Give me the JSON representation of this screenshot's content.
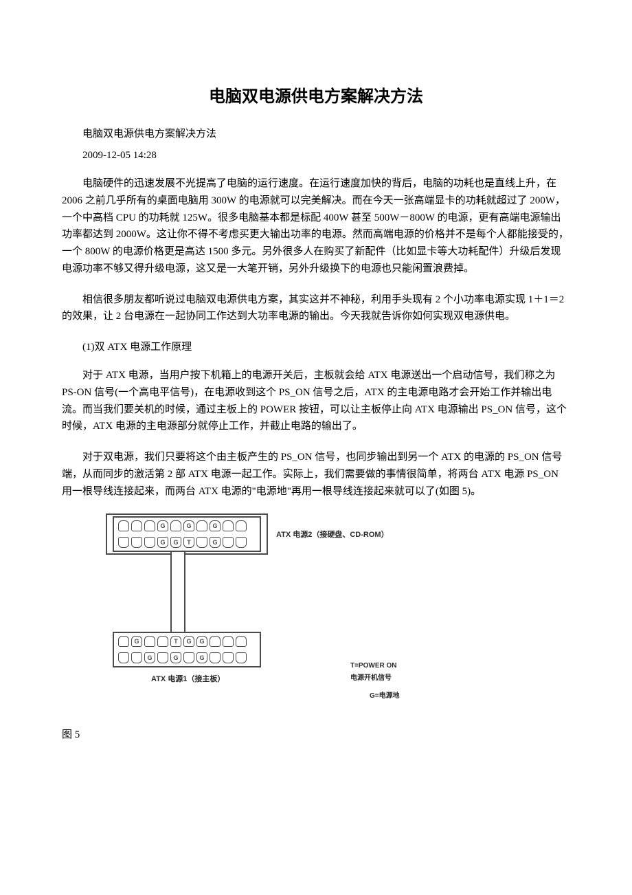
{
  "document": {
    "title": "电脑双电源供电方案解决方法",
    "title_fontsize": 24,
    "subtitle": "电脑双电源供电方案解决方法",
    "timestamp": "2009-12-05 14:28",
    "body_fontsize": 15,
    "paragraphs": [
      "电脑硬件的迅速发展不光提高了电脑的运行速度。在运行速度加快的背后，电脑的功耗也是直线上升，在 2006 之前几乎所有的桌面电脑用 300W 的电源就可以完美解决。而在今天一张高端显卡的功耗就超过了 200W，一个中高档 CPU 的功耗就 125W。很多电脑基本都是标配 400W 甚至 500W－800W 的电源，更有高端电源输出功率都达到 2000W。这让你不得不考虑买更大输出功率的电源。然而高端电源的价格并不是每个人都能接受的，一个 800W 的电源价格更是高达 1500 多元。另外很多人在购买了新配件（比如显卡等大功耗配件）升级后发现电源功率不够又得升级电源，这又是一大笔开销，另外升级换下的电源也只能闲置浪费掉。",
      "相信很多朋友都听说过电脑双电源供电方案，其实这并不神秘，利用手头现有 2 个小功率电源实现 1＋1＝2 的效果，让 2 台电源在一起协同工作达到大功率电源的输出。今天我就告诉你如何实现双电源供电。"
    ],
    "section_heading": "(1)双 ATX 电源工作原理",
    "paragraphs2": [
      "对于 ATX 电源，当用户按下机箱上的电源开关后，主板就会给 ATX 电源送出一个启动信号，我们称之为 PS-ON 信号(一个高电平信号)，在电源收到这个 PS_ON 信号之后，ATX 的主电源电路才会开始工作并输出电流。而当我们要关机的时候，通过主板上的 POWER 按钮，可以让主板停止向 ATX 电源输出 PS_ON 信号，这个时候，ATX 电源的主电源部分就停止工作，并截止电路的输出了。",
      "对于双电源，我们只要将这个由主板产生的 PS_ON 信号，也同步输出到另一个 ATX 的电源的 PS_ON 信号端，从而同步的激活第 2 部 ATX 电源一起工作。实际上，我们需要做的事情很简单，将两台 ATX 电源 PS_ON 用一根导线连接起来，而两台 ATX 电源的\"电源地\"再用一根导线连接起来就可以了(如图 5)。"
    ],
    "figure_caption": "图 5"
  },
  "diagram": {
    "connector_top": {
      "row1_pins": [
        "",
        "",
        "",
        "G",
        "",
        "G",
        "",
        "G",
        "",
        ""
      ],
      "row2_pins": [
        "",
        "",
        "",
        "G",
        "G",
        "T",
        "",
        "G",
        "",
        ""
      ],
      "label": "ATX 电源2（接硬盘、CD-ROM）"
    },
    "connector_bottom": {
      "row1_pins": [
        "",
        "G",
        "",
        "",
        "T",
        "G",
        "G",
        "",
        "",
        ""
      ],
      "row2_pins": [
        "",
        "",
        "G",
        "",
        "G",
        "",
        "G",
        "",
        "",
        ""
      ],
      "label": "ATX 电源1（接主板）"
    },
    "legend": {
      "line1": "T=POWER ON",
      "line2": "电源开机信号",
      "line3": "G=电源地"
    },
    "label_fontsize": 11,
    "legend_fontsize": 10,
    "colors": {
      "border": "#4a4a4a",
      "text": "#2a2a2a",
      "background": "#ffffff"
    }
  }
}
